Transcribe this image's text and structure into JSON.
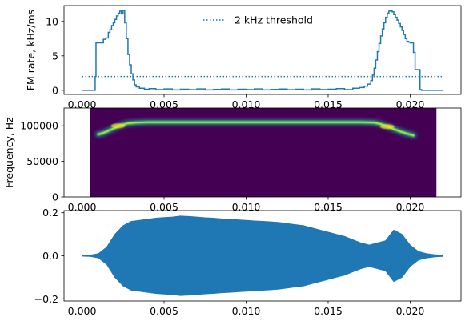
{
  "chart_data": [
    {
      "type": "line",
      "title": "",
      "xlabel": "",
      "ylabel": "FM rate, kHz/ms",
      "xlim": [
        -0.0011,
        0.0231
      ],
      "ylim": [
        -0.6,
        12.3
      ],
      "xticks": [
        0.0,
        0.005,
        0.01,
        0.015,
        0.02
      ],
      "xticklabels": [
        "0.000",
        "0.005",
        "0.010",
        "0.015",
        "0.020"
      ],
      "yticks": [
        0,
        5,
        10
      ],
      "yticklabels": [
        "0",
        "5",
        "10"
      ],
      "grid": false,
      "legend": {
        "placement": "top-center",
        "entries": [
          "2 kHz threshold"
        ]
      },
      "series": [
        {
          "name": "",
          "style": "solid-step",
          "color": "#1f77b4",
          "x": [
            0.0,
            0.0008,
            0.0008,
            0.00085,
            0.00085,
            0.0013,
            0.0013,
            0.00145,
            0.00145,
            0.0016,
            0.0016,
            0.0017,
            0.0017,
            0.0018,
            0.0018,
            0.0019,
            0.0019,
            0.002,
            0.002,
            0.0021,
            0.0021,
            0.0022,
            0.0022,
            0.0023,
            0.0023,
            0.0024,
            0.0024,
            0.0025,
            0.0025,
            0.0026,
            0.0026,
            0.0027,
            0.0027,
            0.0028,
            0.0028,
            0.0029,
            0.0029,
            0.003,
            0.003,
            0.0031,
            0.0031,
            0.0032,
            0.0032,
            0.0033,
            0.0033,
            0.0035,
            0.0035,
            0.0038,
            0.0038,
            0.0041,
            0.0041,
            0.0045,
            0.0045,
            0.005,
            0.005,
            0.0055,
            0.0055,
            0.006,
            0.006,
            0.0065,
            0.0065,
            0.007,
            0.007,
            0.0075,
            0.0075,
            0.008,
            0.008,
            0.0085,
            0.0085,
            0.009,
            0.009,
            0.0095,
            0.0095,
            0.01,
            0.01,
            0.0105,
            0.0105,
            0.011,
            0.011,
            0.0115,
            0.0115,
            0.012,
            0.012,
            0.0125,
            0.0125,
            0.013,
            0.013,
            0.0135,
            0.0135,
            0.014,
            0.014,
            0.0145,
            0.0145,
            0.015,
            0.015,
            0.0155,
            0.0155,
            0.016,
            0.016,
            0.0165,
            0.0165,
            0.0169,
            0.0169,
            0.0172,
            0.0172,
            0.0174,
            0.0174,
            0.0176,
            0.0176,
            0.0177,
            0.0177,
            0.0178,
            0.0178,
            0.0179,
            0.0179,
            0.018,
            0.018,
            0.0181,
            0.0181,
            0.0182,
            0.0182,
            0.0183,
            0.0183,
            0.0184,
            0.0184,
            0.0185,
            0.0185,
            0.0186,
            0.0186,
            0.0187,
            0.0187,
            0.0188,
            0.0188,
            0.0189,
            0.0189,
            0.019,
            0.019,
            0.0191,
            0.0191,
            0.0192,
            0.0192,
            0.0193,
            0.0193,
            0.0194,
            0.0194,
            0.0195,
            0.0195,
            0.0196,
            0.0196,
            0.0197,
            0.0197,
            0.0198,
            0.0198,
            0.0199,
            0.0199,
            0.02,
            0.02,
            0.0202,
            0.0202,
            0.0203,
            0.0203,
            0.0206,
            0.0206,
            0.0207,
            0.0207,
            0.022
          ],
          "y": [
            0.0,
            0.0,
            2.0,
            2.0,
            6.9,
            6.9,
            7.4,
            7.4,
            7.6,
            7.6,
            8.4,
            8.4,
            8.8,
            8.8,
            9.4,
            9.4,
            9.8,
            9.8,
            10.3,
            10.3,
            10.8,
            10.8,
            11.2,
            11.2,
            11.5,
            11.5,
            11.1,
            11.1,
            11.6,
            11.6,
            9.8,
            9.8,
            7.5,
            7.5,
            5.2,
            5.2,
            3.7,
            3.7,
            2.4,
            2.4,
            1.5,
            1.5,
            0.8,
            0.8,
            0.5,
            0.5,
            0.3,
            0.3,
            0.15,
            0.15,
            0.25,
            0.25,
            0.1,
            0.1,
            0.2,
            0.2,
            0.05,
            0.05,
            0.15,
            0.15,
            0.08,
            0.08,
            0.2,
            0.2,
            0.05,
            0.05,
            0.12,
            0.12,
            0.18,
            0.18,
            0.05,
            0.05,
            0.15,
            0.15,
            0.1,
            0.1,
            0.2,
            0.2,
            0.05,
            0.05,
            0.12,
            0.12,
            0.18,
            0.18,
            0.08,
            0.08,
            0.15,
            0.15,
            0.05,
            0.05,
            0.2,
            0.2,
            0.1,
            0.1,
            0.15,
            0.15,
            0.25,
            0.25,
            0.1,
            0.1,
            0.3,
            0.3,
            0.4,
            0.4,
            0.6,
            0.6,
            0.9,
            0.9,
            1.4,
            1.4,
            2.2,
            2.2,
            3.2,
            3.2,
            4.4,
            4.4,
            5.6,
            5.6,
            6.8,
            6.8,
            7.9,
            7.9,
            8.9,
            8.9,
            9.8,
            9.8,
            10.6,
            10.6,
            11.2,
            11.2,
            11.5,
            11.5,
            11.6,
            11.6,
            11.4,
            11.4,
            11.0,
            11.0,
            10.6,
            10.6,
            10.2,
            10.2,
            9.7,
            9.7,
            9.2,
            9.2,
            8.7,
            8.7,
            8.1,
            8.1,
            7.5,
            7.5,
            7.1,
            7.1,
            7.0,
            7.0,
            6.9,
            6.9,
            5.5,
            5.5,
            3.0,
            3.0,
            0.1,
            0.1,
            0.0,
            0.0
          ]
        },
        {
          "name": "2 kHz threshold",
          "style": "dotted",
          "color": "#1f77b4",
          "x": [
            0.0,
            0.022
          ],
          "y": [
            2.0,
            2.0
          ]
        }
      ]
    },
    {
      "type": "heatmap",
      "title": "",
      "xlabel": "",
      "ylabel": "Frequency, Hz",
      "xlim": [
        -0.0011,
        0.0231
      ],
      "ylim": [
        0,
        125000
      ],
      "xticks": [
        0.0,
        0.005,
        0.01,
        0.015,
        0.02
      ],
      "xticklabels": [
        "0.000",
        "0.005",
        "0.010",
        "0.015",
        "0.020"
      ],
      "yticks": [
        0,
        50000,
        100000
      ],
      "yticklabels": [
        "0",
        "50000",
        "100000"
      ],
      "image_extent": {
        "x": [
          0.0005,
          0.0216
        ],
        "y": [
          0,
          125000
        ]
      },
      "colormap": "viridis",
      "background_color": "#440154",
      "ridge": {
        "x": [
          0.001,
          0.0013,
          0.0016,
          0.002,
          0.0024,
          0.0028,
          0.0033,
          0.004,
          0.006,
          0.008,
          0.01,
          0.012,
          0.014,
          0.016,
          0.017,
          0.0178,
          0.0182,
          0.0186,
          0.019,
          0.0194,
          0.0198,
          0.0202
        ],
        "y": [
          88000,
          90000,
          93000,
          97000,
          101000,
          103500,
          104500,
          105000,
          105000,
          105000,
          105000,
          105000,
          105000,
          105000,
          105000,
          104500,
          102500,
          99000,
          95500,
          92000,
          89000,
          86500
        ]
      }
    },
    {
      "type": "line",
      "title": "",
      "xlabel": "",
      "ylabel": "",
      "xlim": [
        -0.0011,
        0.0231
      ],
      "ylim": [
        -0.21,
        0.21
      ],
      "xticks": [
        0.0,
        0.005,
        0.01,
        0.015,
        0.02
      ],
      "xticklabels": [
        "0.000",
        "0.005",
        "0.010",
        "0.015",
        "0.020"
      ],
      "yticks": [
        -0.2,
        0.0,
        0.2
      ],
      "yticklabels": [
        "−0.2",
        "0.0",
        "0.2"
      ],
      "grid": false,
      "series": [
        {
          "name": "",
          "style": "waveform-envelope",
          "color": "#1f77b4",
          "x": [
            0.0,
            0.0005,
            0.001,
            0.0015,
            0.002,
            0.0025,
            0.003,
            0.0035,
            0.004,
            0.0045,
            0.005,
            0.0055,
            0.006,
            0.0065,
            0.007,
            0.0075,
            0.008,
            0.0085,
            0.009,
            0.0095,
            0.01,
            0.0105,
            0.011,
            0.0115,
            0.012,
            0.0125,
            0.013,
            0.0135,
            0.014,
            0.0145,
            0.015,
            0.0155,
            0.016,
            0.0165,
            0.017,
            0.0175,
            0.018,
            0.0185,
            0.019,
            0.0195,
            0.02,
            0.0205,
            0.021,
            0.0215,
            0.022
          ],
          "amplitude": [
            0.002,
            0.003,
            0.01,
            0.04,
            0.1,
            0.14,
            0.16,
            0.165,
            0.17,
            0.175,
            0.178,
            0.18,
            0.185,
            0.183,
            0.18,
            0.177,
            0.175,
            0.172,
            0.17,
            0.167,
            0.165,
            0.162,
            0.16,
            0.158,
            0.155,
            0.15,
            0.145,
            0.14,
            0.13,
            0.12,
            0.11,
            0.1,
            0.09,
            0.075,
            0.06,
            0.05,
            0.06,
            0.07,
            0.12,
            0.1,
            0.05,
            0.02,
            0.01,
            0.005,
            0.003
          ]
        }
      ]
    }
  ]
}
